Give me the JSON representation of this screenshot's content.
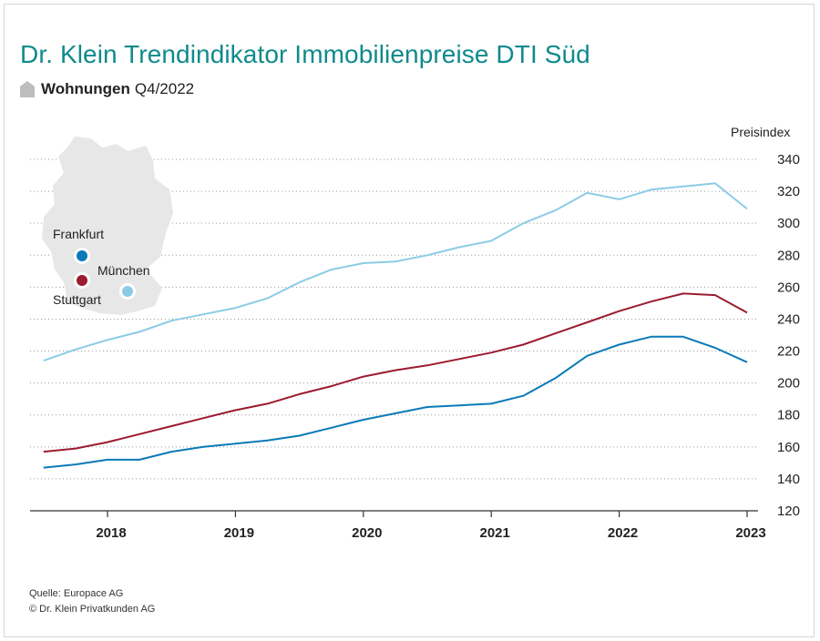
{
  "header": {
    "title": "Dr. Klein Trendindikator Immobilienpreise DTI Süd",
    "subtitle_bold": "Wohnungen",
    "subtitle_rest": "Q4/2022"
  },
  "footer": {
    "source": "Quelle: Europace AG",
    "copyright": "© Dr. Klein Privatkunden AG"
  },
  "colors": {
    "title": "#0f8a8c",
    "frankfurt": "#0a7ab8",
    "stuttgart": "#9b1b30",
    "muenchen": "#8ccbe6",
    "map": "#e7e7e8"
  },
  "map": {
    "labels": [
      "Frankfurt",
      "München",
      "Stuttgart"
    ]
  },
  "chart_data": {
    "type": "line",
    "title": "Dr. Klein Trendindikator Immobilienpreise DTI Süd",
    "ylabel": "Preisindex",
    "xlabel": "",
    "ylim": [
      120,
      340
    ],
    "yticks": [
      120,
      140,
      160,
      180,
      200,
      220,
      240,
      260,
      280,
      300,
      320,
      340
    ],
    "xlim": [
      2017.5,
      2023
    ],
    "xticks": [
      "2018",
      "2019",
      "2020",
      "2021",
      "2022",
      "2023"
    ],
    "grid": "horizontal dotted",
    "x": [
      2017.5,
      2017.75,
      2018.0,
      2018.25,
      2018.5,
      2018.75,
      2019.0,
      2019.25,
      2019.5,
      2019.75,
      2020.0,
      2020.25,
      2020.5,
      2020.75,
      2021.0,
      2021.25,
      2021.5,
      2021.75,
      2022.0,
      2022.25,
      2022.5,
      2022.75,
      2023.0
    ],
    "series": [
      {
        "name": "München",
        "color": "#8ccbe6",
        "values": [
          214,
          221,
          227,
          232,
          239,
          243,
          247,
          253,
          263,
          271,
          275,
          276,
          280,
          285,
          289,
          300,
          308,
          319,
          315,
          321,
          323,
          325,
          309
        ]
      },
      {
        "name": "Stuttgart",
        "color": "#9b1b30",
        "values": [
          157,
          159,
          163,
          168,
          173,
          178,
          183,
          187,
          193,
          198,
          204,
          208,
          211,
          215,
          219,
          224,
          231,
          238,
          245,
          251,
          256,
          255,
          244
        ]
      },
      {
        "name": "Frankfurt",
        "color": "#0a7ab8",
        "values": [
          147,
          149,
          152,
          152,
          157,
          160,
          162,
          164,
          167,
          172,
          177,
          181,
          185,
          186,
          187,
          192,
          203,
          217,
          224,
          229,
          229,
          222,
          213
        ]
      }
    ]
  }
}
